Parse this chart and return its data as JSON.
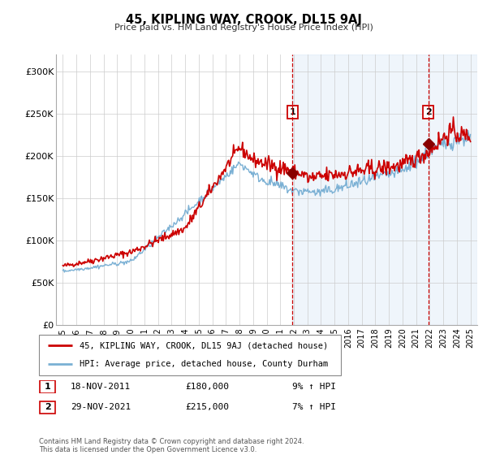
{
  "title": "45, KIPLING WAY, CROOK, DL15 9AJ",
  "subtitle": "Price paid vs. HM Land Registry's House Price Index (HPI)",
  "legend_line1": "45, KIPLING WAY, CROOK, DL15 9AJ (detached house)",
  "legend_line2": "HPI: Average price, detached house, County Durham",
  "annotation1_date": "18-NOV-2011",
  "annotation1_price": "£180,000",
  "annotation1_hpi": "9% ↑ HPI",
  "annotation2_date": "29-NOV-2021",
  "annotation2_price": "£215,000",
  "annotation2_hpi": "7% ↑ HPI",
  "vline1_x": 2011.9,
  "vline2_x": 2021.9,
  "marker1_x": 2011.9,
  "marker1_y": 180000,
  "marker2_x": 2021.9,
  "marker2_y": 215000,
  "ylim": [
    0,
    320000
  ],
  "xlim": [
    1994.5,
    2025.5
  ],
  "red_color": "#cc0000",
  "blue_color": "#7ab0d4",
  "shade_color": "#ddeeff",
  "background_color": "#ffffff",
  "grid_color": "#cccccc",
  "footer_text": "Contains HM Land Registry data © Crown copyright and database right 2024.\nThis data is licensed under the Open Government Licence v3.0.",
  "yticks": [
    0,
    50000,
    100000,
    150000,
    200000,
    250000,
    300000
  ],
  "ytick_labels": [
    "£0",
    "£50K",
    "£100K",
    "£150K",
    "£200K",
    "£250K",
    "£300K"
  ],
  "xticks": [
    1995,
    1996,
    1997,
    1998,
    1999,
    2000,
    2001,
    2002,
    2003,
    2004,
    2005,
    2006,
    2007,
    2008,
    2009,
    2010,
    2011,
    2012,
    2013,
    2014,
    2015,
    2016,
    2017,
    2018,
    2019,
    2020,
    2021,
    2022,
    2023,
    2024,
    2025
  ]
}
